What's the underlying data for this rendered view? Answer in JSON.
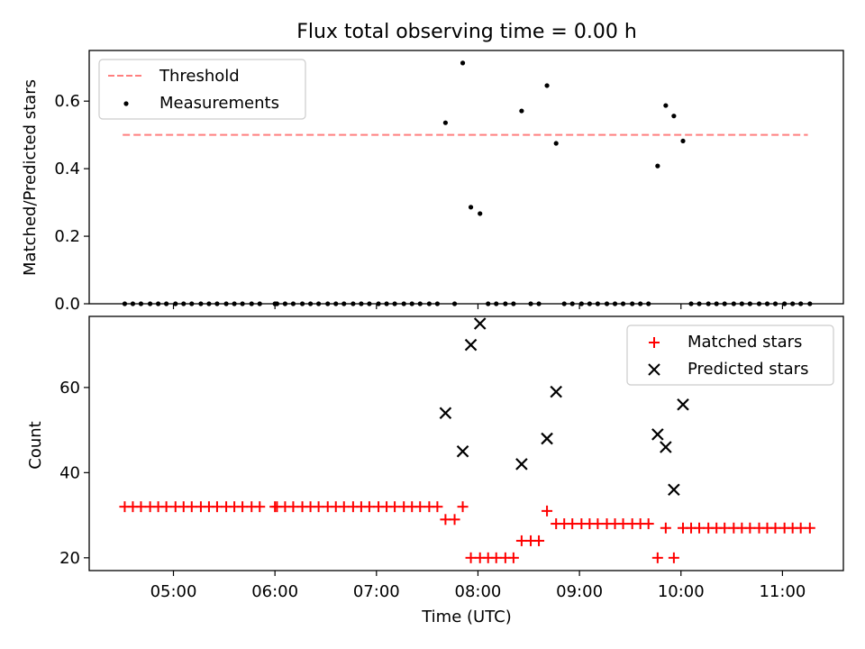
{
  "figure": {
    "title": "Flux total observing time = 0.00 h"
  },
  "chart_data": [
    {
      "type": "scatter",
      "panel": "top",
      "ylabel": "Matched/Predicted stars",
      "ylim": [
        0,
        0.75
      ],
      "yticks": [
        0.0,
        0.2,
        0.4,
        0.6
      ],
      "ytick_labels": [
        "0.0",
        "0.2",
        "0.4",
        "0.6"
      ],
      "xlim_hours": [
        4.17,
        11.6
      ],
      "legend": {
        "location": "upper left",
        "entries": [
          "Threshold",
          "Measurements"
        ]
      },
      "threshold": {
        "name": "Threshold",
        "value": 0.5,
        "x_range_hours": [
          4.5,
          11.25
        ],
        "color": "#ff7f7f",
        "style": "dashed"
      },
      "measurements": {
        "name": "Measurements",
        "color": "#000000",
        "points": [
          [
            4.52,
            0
          ],
          [
            4.6,
            0
          ],
          [
            4.68,
            0
          ],
          [
            4.77,
            0
          ],
          [
            4.85,
            0
          ],
          [
            4.93,
            0
          ],
          [
            5.02,
            0
          ],
          [
            5.1,
            0
          ],
          [
            5.18,
            0
          ],
          [
            5.27,
            0
          ],
          [
            5.35,
            0
          ],
          [
            5.43,
            0
          ],
          [
            5.52,
            0
          ],
          [
            5.6,
            0
          ],
          [
            5.68,
            0
          ],
          [
            5.77,
            0
          ],
          [
            5.85,
            0
          ],
          [
            6.0,
            0
          ],
          [
            6.02,
            0
          ],
          [
            6.1,
            0
          ],
          [
            6.18,
            0
          ],
          [
            6.27,
            0
          ],
          [
            6.35,
            0
          ],
          [
            6.43,
            0
          ],
          [
            6.52,
            0
          ],
          [
            6.6,
            0
          ],
          [
            6.68,
            0
          ],
          [
            6.77,
            0
          ],
          [
            6.85,
            0
          ],
          [
            6.93,
            0
          ],
          [
            7.02,
            0
          ],
          [
            7.1,
            0
          ],
          [
            7.18,
            0
          ],
          [
            7.27,
            0
          ],
          [
            7.35,
            0
          ],
          [
            7.43,
            0
          ],
          [
            7.52,
            0
          ],
          [
            7.6,
            0
          ],
          [
            7.68,
            0.536
          ],
          [
            7.77,
            0
          ],
          [
            7.85,
            0.713
          ],
          [
            7.93,
            0.286
          ],
          [
            8.02,
            0.267
          ],
          [
            8.1,
            0
          ],
          [
            8.18,
            0
          ],
          [
            8.27,
            0
          ],
          [
            8.35,
            0
          ],
          [
            8.43,
            0.571
          ],
          [
            8.52,
            0
          ],
          [
            8.6,
            0
          ],
          [
            8.68,
            0.646
          ],
          [
            8.77,
            0.475
          ],
          [
            8.85,
            0
          ],
          [
            8.93,
            0
          ],
          [
            9.02,
            0
          ],
          [
            9.1,
            0
          ],
          [
            9.18,
            0
          ],
          [
            9.27,
            0
          ],
          [
            9.35,
            0
          ],
          [
            9.43,
            0
          ],
          [
            9.52,
            0
          ],
          [
            9.6,
            0
          ],
          [
            9.68,
            0
          ],
          [
            9.77,
            0.408
          ],
          [
            9.85,
            0.587
          ],
          [
            9.93,
            0.556
          ],
          [
            10.02,
            0.482
          ],
          [
            10.1,
            0
          ],
          [
            10.18,
            0
          ],
          [
            10.27,
            0
          ],
          [
            10.35,
            0
          ],
          [
            10.43,
            0
          ],
          [
            10.52,
            0
          ],
          [
            10.6,
            0
          ],
          [
            10.68,
            0
          ],
          [
            10.77,
            0
          ],
          [
            10.85,
            0
          ],
          [
            10.93,
            0
          ],
          [
            11.02,
            0
          ],
          [
            11.1,
            0
          ],
          [
            11.18,
            0
          ],
          [
            11.27,
            0
          ]
        ]
      }
    },
    {
      "type": "scatter",
      "panel": "bottom",
      "xlabel": "Time (UTC)",
      "ylabel": "Count",
      "ylim": [
        17,
        76.7
      ],
      "yticks": [
        20,
        40,
        60
      ],
      "ytick_labels": [
        "20",
        "40",
        "60"
      ],
      "xlim_hours": [
        4.17,
        11.6
      ],
      "xticks_hours": [
        5,
        6,
        7,
        8,
        9,
        10,
        11
      ],
      "xtick_labels": [
        "05:00",
        "06:00",
        "07:00",
        "08:00",
        "09:00",
        "10:00",
        "11:00"
      ],
      "legend": {
        "location": "upper right",
        "entries": [
          "Matched stars",
          "Predicted stars"
        ]
      },
      "matched": {
        "name": "Matched stars",
        "color": "#ff0000",
        "marker": "plus",
        "points": [
          [
            4.52,
            32
          ],
          [
            4.6,
            32
          ],
          [
            4.68,
            32
          ],
          [
            4.77,
            32
          ],
          [
            4.85,
            32
          ],
          [
            4.93,
            32
          ],
          [
            5.02,
            32
          ],
          [
            5.1,
            32
          ],
          [
            5.18,
            32
          ],
          [
            5.27,
            32
          ],
          [
            5.35,
            32
          ],
          [
            5.43,
            32
          ],
          [
            5.52,
            32
          ],
          [
            5.6,
            32
          ],
          [
            5.68,
            32
          ],
          [
            5.77,
            32
          ],
          [
            5.85,
            32
          ],
          [
            6.0,
            32
          ],
          [
            6.02,
            32
          ],
          [
            6.1,
            32
          ],
          [
            6.18,
            32
          ],
          [
            6.27,
            32
          ],
          [
            6.35,
            32
          ],
          [
            6.43,
            32
          ],
          [
            6.52,
            32
          ],
          [
            6.6,
            32
          ],
          [
            6.68,
            32
          ],
          [
            6.77,
            32
          ],
          [
            6.85,
            32
          ],
          [
            6.93,
            32
          ],
          [
            7.02,
            32
          ],
          [
            7.1,
            32
          ],
          [
            7.18,
            32
          ],
          [
            7.27,
            32
          ],
          [
            7.35,
            32
          ],
          [
            7.43,
            32
          ],
          [
            7.52,
            32
          ],
          [
            7.6,
            32
          ],
          [
            7.68,
            29
          ],
          [
            7.77,
            29
          ],
          [
            7.85,
            32
          ],
          [
            7.93,
            20
          ],
          [
            8.02,
            20
          ],
          [
            8.1,
            20
          ],
          [
            8.18,
            20
          ],
          [
            8.27,
            20
          ],
          [
            8.35,
            20
          ],
          [
            8.43,
            24
          ],
          [
            8.52,
            24
          ],
          [
            8.6,
            24
          ],
          [
            8.68,
            31
          ],
          [
            8.77,
            28
          ],
          [
            8.85,
            28
          ],
          [
            8.93,
            28
          ],
          [
            9.02,
            28
          ],
          [
            9.1,
            28
          ],
          [
            9.18,
            28
          ],
          [
            9.27,
            28
          ],
          [
            9.35,
            28
          ],
          [
            9.43,
            28
          ],
          [
            9.52,
            28
          ],
          [
            9.6,
            28
          ],
          [
            9.68,
            28
          ],
          [
            9.77,
            20
          ],
          [
            9.85,
            27
          ],
          [
            9.93,
            20
          ],
          [
            10.02,
            27
          ],
          [
            10.1,
            27
          ],
          [
            10.18,
            27
          ],
          [
            10.27,
            27
          ],
          [
            10.35,
            27
          ],
          [
            10.43,
            27
          ],
          [
            10.52,
            27
          ],
          [
            10.6,
            27
          ],
          [
            10.68,
            27
          ],
          [
            10.77,
            27
          ],
          [
            10.85,
            27
          ],
          [
            10.93,
            27
          ],
          [
            11.02,
            27
          ],
          [
            11.1,
            27
          ],
          [
            11.18,
            27
          ],
          [
            11.27,
            27
          ]
        ]
      },
      "predicted": {
        "name": "Predicted stars",
        "color": "#000000",
        "marker": "x",
        "points": [
          [
            7.68,
            54
          ],
          [
            7.85,
            45
          ],
          [
            7.93,
            70
          ],
          [
            8.02,
            75
          ],
          [
            8.43,
            42
          ],
          [
            8.68,
            48
          ],
          [
            8.77,
            59
          ],
          [
            9.77,
            49
          ],
          [
            9.85,
            46
          ],
          [
            9.93,
            36
          ],
          [
            10.02,
            56
          ]
        ]
      }
    }
  ]
}
